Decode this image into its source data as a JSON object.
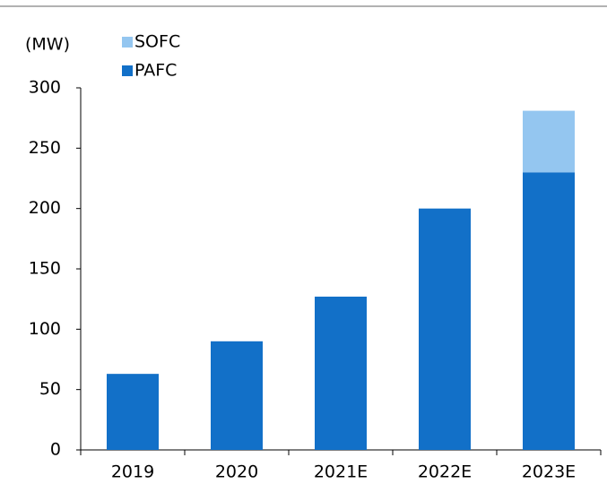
{
  "chart_data": {
    "type": "stacked_bar",
    "ylabel": "(MW)",
    "categories": [
      "2019",
      "2020",
      "2021E",
      "2022E",
      "2023E"
    ],
    "series": [
      {
        "name": "PAFC",
        "color": "#1270c8",
        "values": [
          63,
          90,
          127,
          200,
          230
        ]
      },
      {
        "name": "SOFC",
        "color": "#94c6f0",
        "values": [
          0,
          0,
          0,
          0,
          51
        ]
      }
    ],
    "ylim": [
      0,
      300
    ],
    "yticks": [
      0,
      50,
      100,
      150,
      200,
      250,
      300
    ],
    "grid": false
  }
}
